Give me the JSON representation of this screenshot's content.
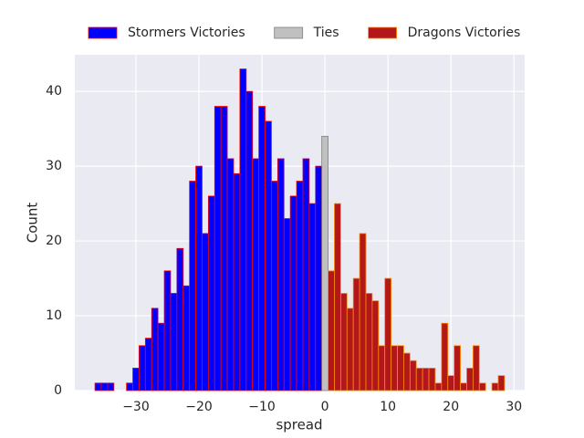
{
  "chart_data": {
    "type": "histogram",
    "xlabel": "spread",
    "ylabel": "Count",
    "xlim": [
      -39.7,
      31.7
    ],
    "ylim": [
      0,
      44.9
    ],
    "xticks": [
      {
        "value": -30,
        "label": "−30"
      },
      {
        "value": -20,
        "label": "−20"
      },
      {
        "value": -10,
        "label": "−10"
      },
      0,
      10,
      20,
      30
    ],
    "yticks": [
      0,
      10,
      20,
      30,
      40
    ],
    "grid": true,
    "legend": "top",
    "series": [
      {
        "name": "Stormers Victories",
        "color": "#0000ff",
        "edgecolor": "#ff0000",
        "bins": [
          -36.5,
          -35.5,
          -34.5,
          -33.5,
          -32.5,
          -31.5,
          -30.5,
          -29.5,
          -28.5,
          -27.5,
          -26.5,
          -25.5,
          -24.5,
          -23.5,
          -22.5,
          -21.5,
          -20.5,
          -19.5,
          -18.5,
          -17.5,
          -16.5,
          -15.5,
          -14.5,
          -13.5,
          -12.5,
          -11.5,
          -10.5,
          -9.5,
          -8.5,
          -7.5,
          -6.5,
          -5.5,
          -4.5,
          -3.5,
          -2.5,
          -1.5,
          -0.5
        ],
        "values": [
          1,
          1,
          1,
          0,
          0,
          1,
          3,
          6,
          7,
          11,
          9,
          16,
          13,
          19,
          14,
          28,
          30,
          21,
          26,
          38,
          38,
          31,
          29,
          43,
          40,
          31,
          38,
          36,
          28,
          31,
          23,
          26,
          28,
          31,
          25,
          30
        ]
      },
      {
        "name": "Ties",
        "color": "#c0c0c0",
        "edgecolor": "#808080",
        "bins": [
          -0.5,
          0.5
        ],
        "values": [
          34
        ]
      },
      {
        "name": "Dragons Victories",
        "color": "#b2171a",
        "edgecolor": "#ff8c00",
        "bins": [
          0.5,
          1.5,
          2.5,
          3.5,
          4.5,
          5.5,
          6.5,
          7.5,
          8.5,
          9.5,
          10.5,
          11.5,
          12.5,
          13.5,
          14.5,
          15.5,
          16.5,
          17.5,
          18.5,
          19.5,
          20.5,
          21.5,
          22.5,
          23.5,
          24.5,
          25.5,
          26.5,
          27.5,
          28.5
        ],
        "values": [
          16,
          25,
          13,
          11,
          15,
          21,
          13,
          12,
          6,
          15,
          6,
          6,
          5,
          4,
          3,
          3,
          3,
          1,
          9,
          2,
          6,
          1,
          3,
          6,
          1,
          0,
          1,
          2
        ]
      }
    ]
  }
}
